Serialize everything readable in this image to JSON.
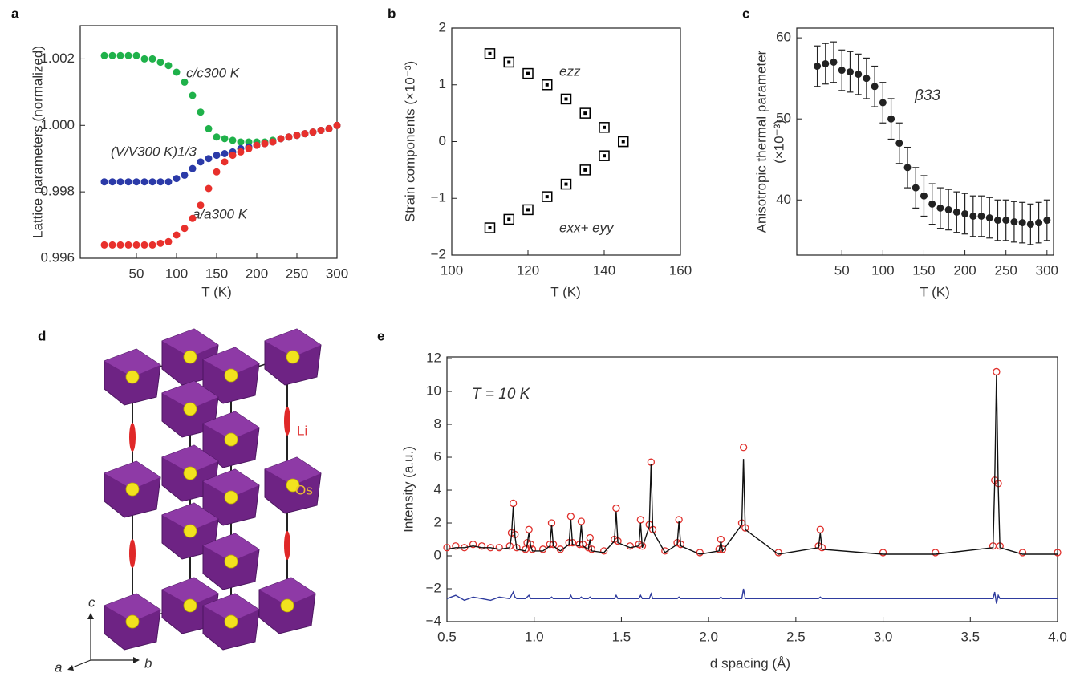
{
  "chart_data": [
    {
      "type": "scatter",
      "panel_label": "a",
      "marker": "dot",
      "xlabel": "T (K)",
      "ylabel": "Lattice parameters (normalized)",
      "xlim": [
        -20,
        300
      ],
      "xticks": [
        50,
        100,
        150,
        200,
        250,
        300
      ],
      "ylim": [
        0.996,
        1.003
      ],
      "yticks": [
        0.996,
        0.998,
        {
          "value": 1,
          "label": "1.000"
        },
        1.002
      ],
      "x": [
        10,
        20,
        30,
        40,
        50,
        60,
        70,
        80,
        90,
        100,
        110,
        120,
        130,
        140,
        150,
        160,
        170,
        180,
        190,
        200,
        210,
        220,
        230,
        240,
        250,
        260,
        270,
        280,
        290,
        300
      ],
      "series": [
        {
          "name": "c/c300 K",
          "color": "#1fb14a",
          "values": [
            1.0021,
            1.0021,
            1.0021,
            1.0021,
            1.0021,
            1.002,
            1.002,
            1.0019,
            1.0018,
            1.0016,
            1.0013,
            1.0009,
            1.0004,
            0.9999,
            0.99965,
            0.9996,
            0.99955,
            0.9995,
            0.9995,
            0.9995,
            0.9995,
            0.99955,
            0.9996,
            0.99965,
            0.9997,
            0.99975,
            0.9998,
            0.99985,
            0.9999,
            1.0
          ]
        },
        {
          "name": "(V/V300 K)1/3",
          "color": "#2b3aa8",
          "values": [
            0.9983,
            0.9983,
            0.9983,
            0.9983,
            0.9983,
            0.9983,
            0.9983,
            0.9983,
            0.9983,
            0.9984,
            0.9985,
            0.9987,
            0.9989,
            0.999,
            0.9991,
            0.99915,
            0.9992,
            0.9993,
            0.99935,
            0.9994,
            0.99945,
            0.9995,
            0.9996,
            0.99965,
            0.9997,
            0.99975,
            0.9998,
            0.99985,
            0.9999,
            1.0
          ]
        },
        {
          "name": "a/a300 K",
          "color": "#e8302c",
          "values": [
            0.9964,
            0.9964,
            0.9964,
            0.9964,
            0.9964,
            0.9964,
            0.9964,
            0.99645,
            0.9965,
            0.9967,
            0.9969,
            0.9972,
            0.9976,
            0.9981,
            0.9986,
            0.9989,
            0.9991,
            0.9992,
            0.9993,
            0.9994,
            0.99945,
            0.9995,
            0.9996,
            0.99965,
            0.9997,
            0.99975,
            0.9998,
            0.99985,
            0.9999,
            1.0
          ]
        }
      ]
    },
    {
      "type": "scatter",
      "panel_label": "b",
      "marker": "square",
      "xlabel": "T (K)",
      "ylabel": "Strain components (×10⁻³)",
      "xlim": [
        100,
        160
      ],
      "xticks": [
        100,
        120,
        140,
        160
      ],
      "ylim": [
        -2,
        2
      ],
      "yticks": [
        {
          "value": -2,
          "label": "−2"
        },
        {
          "value": -1,
          "label": "−1"
        },
        0,
        1,
        2
      ],
      "x": [
        110,
        115,
        120,
        125,
        130,
        135,
        140,
        145
      ],
      "series": [
        {
          "name": "ezz",
          "color": "#000000",
          "values": [
            1.55,
            1.4,
            1.2,
            1.0,
            0.75,
            0.5,
            0.25,
            0
          ]
        },
        {
          "name": "exx+ eyy",
          "color": "#000000",
          "values": [
            -1.52,
            -1.37,
            -1.2,
            -0.97,
            -0.75,
            -0.5,
            -0.25,
            0
          ]
        }
      ]
    },
    {
      "type": "errorbar",
      "panel_label": "c",
      "xlabel": "T (K)",
      "ylabel": [
        "Anisotropic thermal parameter",
        "(×10⁻³)"
      ],
      "annotation": "β33",
      "xlim": [
        -5,
        308
      ],
      "xticks": [
        50,
        100,
        150,
        200,
        250,
        300
      ],
      "ylim": [
        33.2,
        61.2
      ],
      "yticks": [
        40,
        50,
        60
      ],
      "x": [
        20,
        30,
        40,
        50,
        60,
        70,
        80,
        90,
        100,
        110,
        120,
        130,
        140,
        150,
        160,
        170,
        180,
        190,
        200,
        210,
        220,
        230,
        240,
        250,
        260,
        270,
        280,
        290,
        300
      ],
      "color": "#222222",
      "values": [
        56.5,
        56.8,
        57,
        56,
        55.8,
        55.5,
        55,
        54,
        52,
        50,
        47,
        44,
        41.5,
        40.5,
        39.5,
        39,
        38.8,
        38.5,
        38.3,
        38,
        38,
        37.8,
        37.5,
        37.5,
        37.3,
        37.2,
        37,
        37.2,
        37.5
      ],
      "errors": [
        2.5,
        2.5,
        2.5,
        2.5,
        2.5,
        2.5,
        2.5,
        2.5,
        2.5,
        2.5,
        2.5,
        2.5,
        2.5,
        2.5,
        2.5,
        2.5,
        2.5,
        2.5,
        2.5,
        2.5,
        2.5,
        2.5,
        2.5,
        2.5,
        2.5,
        2.5,
        2.5,
        2.5,
        2.5
      ]
    },
    {
      "type": "line",
      "panel_label": "e",
      "xlabel": "d spacing (Å)",
      "ylabel": "Intensity (a.u.)",
      "annotation": "T = 10 K",
      "xlim": [
        0.5,
        4.0
      ],
      "xticks": [
        0.5,
        {
          "value": 1,
          "label": "1.0"
        },
        1.5,
        {
          "value": 2,
          "label": "2.0"
        },
        2.5,
        {
          "value": 3,
          "label": "3.0"
        },
        3.5,
        {
          "value": 4,
          "label": "4.0"
        }
      ],
      "ylim": [
        -4,
        12.1
      ],
      "yticks": [
        {
          "value": -4,
          "label": "−4"
        },
        {
          "value": -2,
          "label": "−2"
        },
        0,
        2,
        4,
        6,
        8,
        10,
        12
      ],
      "x": [
        0.5,
        0.55,
        0.6,
        0.65,
        0.7,
        0.75,
        0.8,
        0.86,
        0.87,
        0.88,
        0.89,
        0.9,
        0.95,
        0.96,
        0.97,
        0.98,
        0.99,
        1.05,
        1.09,
        1.1,
        1.11,
        1.15,
        1.2,
        1.21,
        1.22,
        1.26,
        1.27,
        1.28,
        1.31,
        1.32,
        1.33,
        1.4,
        1.46,
        1.47,
        1.48,
        1.55,
        1.6,
        1.61,
        1.62,
        1.66,
        1.67,
        1.68,
        1.75,
        1.82,
        1.83,
        1.84,
        1.95,
        2.06,
        2.07,
        2.08,
        2.19,
        2.2,
        2.21,
        2.4,
        2.63,
        2.64,
        2.65,
        3.0,
        3.3,
        3.63,
        3.64,
        3.65,
        3.66,
        3.67,
        3.8,
        4.0
      ],
      "series": [
        {
          "marker": "circle",
          "color": "#e0302c",
          "values": [
            0.5,
            0.6,
            0.5,
            0.7,
            0.6,
            0.5,
            0.5,
            0.6,
            1.4,
            3.2,
            1.3,
            0.5,
            0.4,
            0.8,
            1.6,
            0.7,
            0.4,
            0.4,
            0.7,
            2.0,
            0.7,
            0.4,
            0.8,
            2.4,
            0.8,
            0.7,
            2.1,
            0.7,
            0.5,
            1.1,
            0.4,
            0.3,
            1.0,
            2.9,
            0.9,
            0.6,
            0.7,
            2.2,
            0.6,
            1.9,
            5.7,
            1.6,
            0.3,
            0.8,
            2.2,
            0.7,
            0.2,
            0.4,
            1.0,
            0.4,
            2.0,
            6.6,
            1.7,
            0.2,
            0.6,
            1.6,
            0.5,
            0.2,
            0.2,
            0.6,
            4.6,
            11.2,
            4.4,
            0.6,
            0.2,
            0.2
          ]
        },
        {
          "color": "#111111",
          "values": [
            0.4,
            0.5,
            0.5,
            0.6,
            0.5,
            0.5,
            0.4,
            0.5,
            1.2,
            3.0,
            1.2,
            0.4,
            0.3,
            0.7,
            1.4,
            0.6,
            0.3,
            0.3,
            0.6,
            1.9,
            0.6,
            0.3,
            0.7,
            2.2,
            0.7,
            0.6,
            1.9,
            0.6,
            0.4,
            1.0,
            0.3,
            0.2,
            0.9,
            2.7,
            0.8,
            0.5,
            0.6,
            2.0,
            0.5,
            1.8,
            5.6,
            1.5,
            0.2,
            0.7,
            2.1,
            0.6,
            0.1,
            0.3,
            0.9,
            0.3,
            1.9,
            5.9,
            1.6,
            0.1,
            0.5,
            1.4,
            0.4,
            0.1,
            0.1,
            0.5,
            4.5,
            11.0,
            4.2,
            0.5,
            0.1,
            0.1
          ]
        },
        {
          "color": "#2f3c9e",
          "values": [
            -2.6,
            -2.4,
            -2.7,
            -2.5,
            -2.6,
            -2.7,
            -2.5,
            -2.6,
            -2.4,
            -2.2,
            -2.5,
            -2.6,
            -2.6,
            -2.5,
            -2.4,
            -2.6,
            -2.6,
            -2.6,
            -2.6,
            -2.5,
            -2.6,
            -2.6,
            -2.6,
            -2.4,
            -2.6,
            -2.6,
            -2.5,
            -2.6,
            -2.6,
            -2.5,
            -2.6,
            -2.6,
            -2.6,
            -2.4,
            -2.6,
            -2.6,
            -2.6,
            -2.4,
            -2.6,
            -2.6,
            -2.3,
            -2.6,
            -2.6,
            -2.6,
            -2.5,
            -2.6,
            -2.6,
            -2.6,
            -2.5,
            -2.6,
            -2.6,
            -2.0,
            -2.6,
            -2.6,
            -2.6,
            -2.5,
            -2.6,
            -2.6,
            -2.6,
            -2.6,
            -2.2,
            -2.9,
            -2.4,
            -2.6,
            -2.6,
            -2.6
          ]
        }
      ]
    }
  ],
  "structure": {
    "panel_label": "d",
    "li_label": "Li",
    "os_label": "Os",
    "axis_labels": [
      "c",
      "a",
      "b"
    ]
  }
}
